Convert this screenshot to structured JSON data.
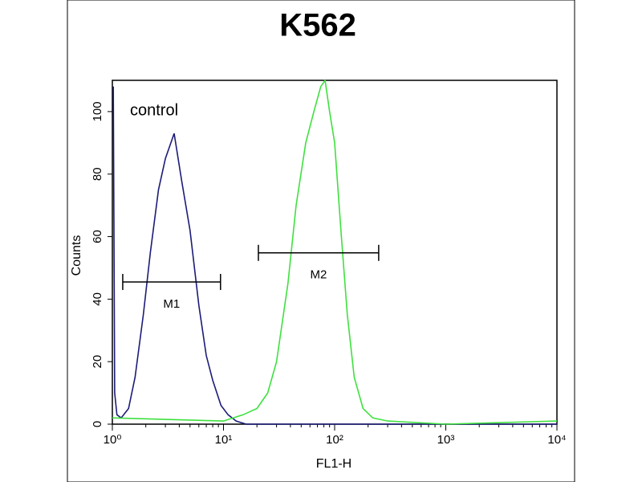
{
  "chart_data": {
    "type": "line",
    "title": "K562",
    "xlabel": "FL1-H",
    "ylabel": "Counts",
    "xscale": "log",
    "xlim": [
      1,
      10000
    ],
    "ylim": [
      0,
      110
    ],
    "xticks": [
      {
        "value": 1,
        "label": "10⁰"
      },
      {
        "value": 10,
        "label": "10¹"
      },
      {
        "value": 100,
        "label": "10²"
      },
      {
        "value": 1000,
        "label": "10³"
      },
      {
        "value": 10000,
        "label": "10⁴"
      }
    ],
    "yticks": [
      0,
      20,
      40,
      60,
      80,
      100
    ],
    "series": [
      {
        "name": "control",
        "color": "#1c1c78",
        "x": [
          1.02,
          1.05,
          1.1,
          1.2,
          1.4,
          1.6,
          1.9,
          2.2,
          2.6,
          3.0,
          3.6,
          4.2,
          5.0,
          6.0,
          7.0,
          8.0,
          9.5,
          11,
          13,
          16,
          100,
          10000
        ],
        "values": [
          108,
          10,
          3,
          2,
          5,
          15,
          35,
          55,
          75,
          85,
          93,
          78,
          62,
          38,
          22,
          14,
          6,
          3,
          1,
          0,
          0,
          0
        ]
      },
      {
        "color": "#3fe03f",
        "x": [
          1,
          10,
          15,
          20,
          25,
          30,
          38,
          45,
          55,
          65,
          75,
          82,
          90,
          100,
          115,
          130,
          150,
          180,
          220,
          300,
          1000,
          10000
        ],
        "values": [
          2,
          1,
          3,
          5,
          10,
          20,
          45,
          70,
          90,
          100,
          108,
          110,
          100,
          90,
          60,
          35,
          15,
          5,
          2,
          1,
          0,
          1
        ]
      }
    ],
    "markers": [
      {
        "label": "M1",
        "x": [
          1.24,
          9.4
        ],
        "y": 45.5
      },
      {
        "label": "M2",
        "x": [
          20.6,
          249
        ],
        "y": 54.8
      }
    ]
  }
}
